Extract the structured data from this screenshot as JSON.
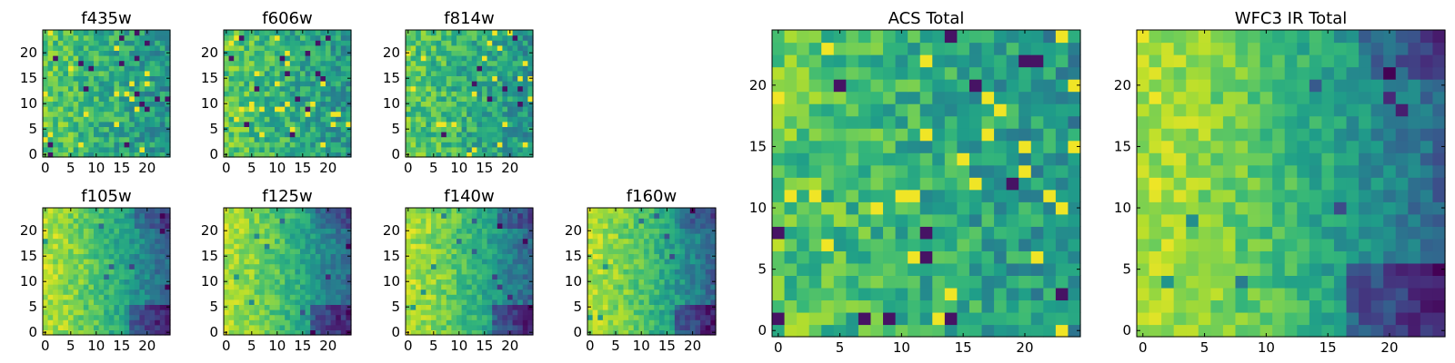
{
  "chart_data": [
    {
      "type": "heatmap",
      "title": "f435w",
      "colormap": "viridis",
      "size": [
        25,
        25
      ],
      "xlim": [
        0,
        24
      ],
      "ylim": [
        0,
        24
      ],
      "xticks": [
        "0",
        "5",
        "10",
        "15",
        "20"
      ],
      "yticks": [
        "0",
        "5",
        "10",
        "15",
        "20"
      ],
      "pattern": "noise",
      "summary": {
        "min": 0.0,
        "max": 1.0,
        "mean": 0.72
      }
    },
    {
      "type": "heatmap",
      "title": "f606w",
      "colormap": "viridis",
      "size": [
        25,
        25
      ],
      "xlim": [
        0,
        24
      ],
      "ylim": [
        0,
        24
      ],
      "xticks": [
        "0",
        "5",
        "10",
        "15",
        "20"
      ],
      "yticks": [
        "0",
        "5",
        "10",
        "15",
        "20"
      ],
      "pattern": "noise",
      "summary": {
        "min": 0.0,
        "max": 1.0,
        "mean": 0.7
      }
    },
    {
      "type": "heatmap",
      "title": "f814w",
      "colormap": "viridis",
      "size": [
        25,
        25
      ],
      "xlim": [
        0,
        24
      ],
      "ylim": [
        0,
        24
      ],
      "xticks": [
        "0",
        "5",
        "10",
        "15",
        "20"
      ],
      "yticks": [
        "0",
        "5",
        "10",
        "15",
        "20"
      ],
      "pattern": "noise",
      "summary": {
        "min": 0.0,
        "max": 1.0,
        "mean": 0.7
      }
    },
    {
      "type": "heatmap",
      "title": "f105w",
      "colormap": "viridis",
      "size": [
        25,
        25
      ],
      "xlim": [
        0,
        24
      ],
      "ylim": [
        0,
        24
      ],
      "xticks": [
        "0",
        "5",
        "10",
        "15",
        "20"
      ],
      "yticks": [
        "0",
        "5",
        "10",
        "15",
        "20"
      ],
      "pattern": "gradient",
      "summary": {
        "min": 0.0,
        "max": 1.0,
        "mean": 0.68
      }
    },
    {
      "type": "heatmap",
      "title": "f125w",
      "colormap": "viridis",
      "size": [
        25,
        25
      ],
      "xlim": [
        0,
        24
      ],
      "ylim": [
        0,
        24
      ],
      "xticks": [
        "0",
        "5",
        "10",
        "15",
        "20"
      ],
      "yticks": [
        "0",
        "5",
        "10",
        "15",
        "20"
      ],
      "pattern": "gradient",
      "summary": {
        "min": 0.0,
        "max": 1.0,
        "mean": 0.7
      }
    },
    {
      "type": "heatmap",
      "title": "f140w",
      "colormap": "viridis",
      "size": [
        25,
        25
      ],
      "xlim": [
        0,
        24
      ],
      "ylim": [
        0,
        24
      ],
      "xticks": [
        "0",
        "5",
        "10",
        "15",
        "20"
      ],
      "yticks": [
        "0",
        "5",
        "10",
        "15",
        "20"
      ],
      "pattern": "gradient",
      "summary": {
        "min": 0.0,
        "max": 1.0,
        "mean": 0.64
      }
    },
    {
      "type": "heatmap",
      "title": "f160w",
      "colormap": "viridis",
      "size": [
        25,
        25
      ],
      "xlim": [
        0,
        24
      ],
      "ylim": [
        0,
        24
      ],
      "xticks": [
        "0",
        "5",
        "10",
        "15",
        "20"
      ],
      "yticks": [
        "0",
        "5",
        "10",
        "15",
        "20"
      ],
      "pattern": "gradient",
      "summary": {
        "min": 0.0,
        "max": 1.0,
        "mean": 0.62
      }
    },
    {
      "type": "heatmap",
      "title": "ACS Total",
      "colormap": "viridis",
      "size": [
        25,
        25
      ],
      "xlim": [
        0,
        24
      ],
      "ylim": [
        0,
        24
      ],
      "xticks": [
        "0",
        "5",
        "10",
        "15",
        "20"
      ],
      "yticks": [
        "0",
        "5",
        "10",
        "15",
        "20"
      ],
      "pattern": "noise",
      "summary": {
        "min": 0.0,
        "max": 1.0,
        "mean": 0.66
      }
    },
    {
      "type": "heatmap",
      "title": "WFC3 IR Total",
      "colormap": "viridis",
      "size": [
        25,
        25
      ],
      "xlim": [
        0,
        24
      ],
      "ylim": [
        0,
        24
      ],
      "xticks": [
        "0",
        "5",
        "10",
        "15",
        "20"
      ],
      "yticks": [
        "0",
        "5",
        "10",
        "15",
        "20"
      ],
      "pattern": "gradient",
      "summary": {
        "min": 0.0,
        "max": 1.0,
        "mean": 0.62
      }
    }
  ]
}
